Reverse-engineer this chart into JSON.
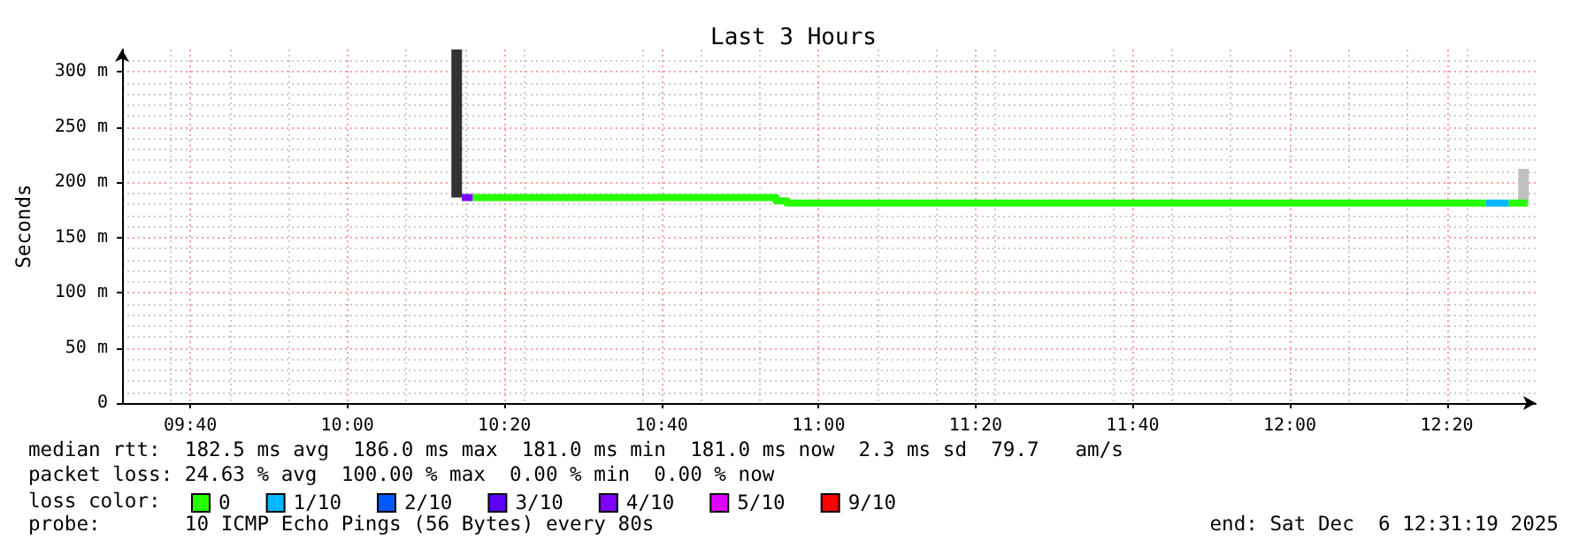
{
  "chart_data": {
    "type": "line",
    "title": "Last 3 Hours",
    "ylabel": "Seconds",
    "xlim": [
      9.5219,
      12.5219
    ],
    "xticks": [
      {
        "value": 9.6667,
        "label": "09:40"
      },
      {
        "value": 10,
        "label": "10:00"
      },
      {
        "value": 10.3333,
        "label": "10:20"
      },
      {
        "value": 10.6667,
        "label": "10:40"
      },
      {
        "value": 11,
        "label": "11:00"
      },
      {
        "value": 11.3333,
        "label": "11:20"
      },
      {
        "value": 11.6667,
        "label": "11:40"
      },
      {
        "value": 12,
        "label": "12:00"
      },
      {
        "value": 12.3333,
        "label": "12:20"
      }
    ],
    "ylim": [
      0,
      320
    ],
    "yticks": [
      0,
      {
        "value": 50,
        "label": "50 m"
      },
      {
        "value": 100,
        "label": "100 m"
      },
      {
        "value": 150,
        "label": "150 m"
      },
      {
        "value": 200,
        "label": "200 m"
      },
      {
        "value": 250,
        "label": "250 m"
      },
      {
        "value": 300,
        "label": "300 m"
      }
    ],
    "grid": true,
    "legend": "bottom",
    "legend_title": "loss color:",
    "marker": "none",
    "line_style": "solid",
    "series": [
      {
        "type": "bar",
        "x": [
          10.232,
          12.496
        ],
        "base": [
          186,
          181
        ],
        "values": [
          134,
          31
        ],
        "colors": [
          "#333333",
          "#c0c0c0"
        ]
      },
      {
        "name": "0",
        "color": "#26ff00",
        "x": [
          10.266,
          10.91,
          10.91,
          10.933,
          10.933,
          12.4157,
          12.44,
          12.4644,
          12.5056
        ],
        "values": [
          186,
          186,
          183,
          183,
          181,
          181,
          null,
          181,
          181
        ]
      },
      {
        "name": "1/10",
        "color": "#00b8ff",
        "x": [
          12.4157,
          12.4644
        ],
        "values": [
          181,
          181
        ]
      },
      {
        "name": "2/10",
        "color": "#0059ff"
      },
      {
        "name": "3/10",
        "color": "#5e00ff"
      },
      {
        "name": "4/10",
        "color": "#7e00ff",
        "x": [
          10.243,
          10.266
        ],
        "values": [
          186,
          186
        ]
      },
      {
        "name": "5/10",
        "color": "#dd00ff"
      },
      {
        "name": "9/10",
        "color": "#ff0000"
      }
    ],
    "annotations": [
      "median rtt:  182.5 ms avg  186.0 ms max  181.0 ms min  181.0 ms now  2.3 ms sd  79.7   am/s",
      "packet loss: 24.63 % avg  100.00 % max  0.00 % min  0.00 % now",
      "probe:       10 ICMP Echo Pings (56 Bytes) every 80s",
      "end: Sat Dec  6 12:31:19 2025"
    ]
  }
}
